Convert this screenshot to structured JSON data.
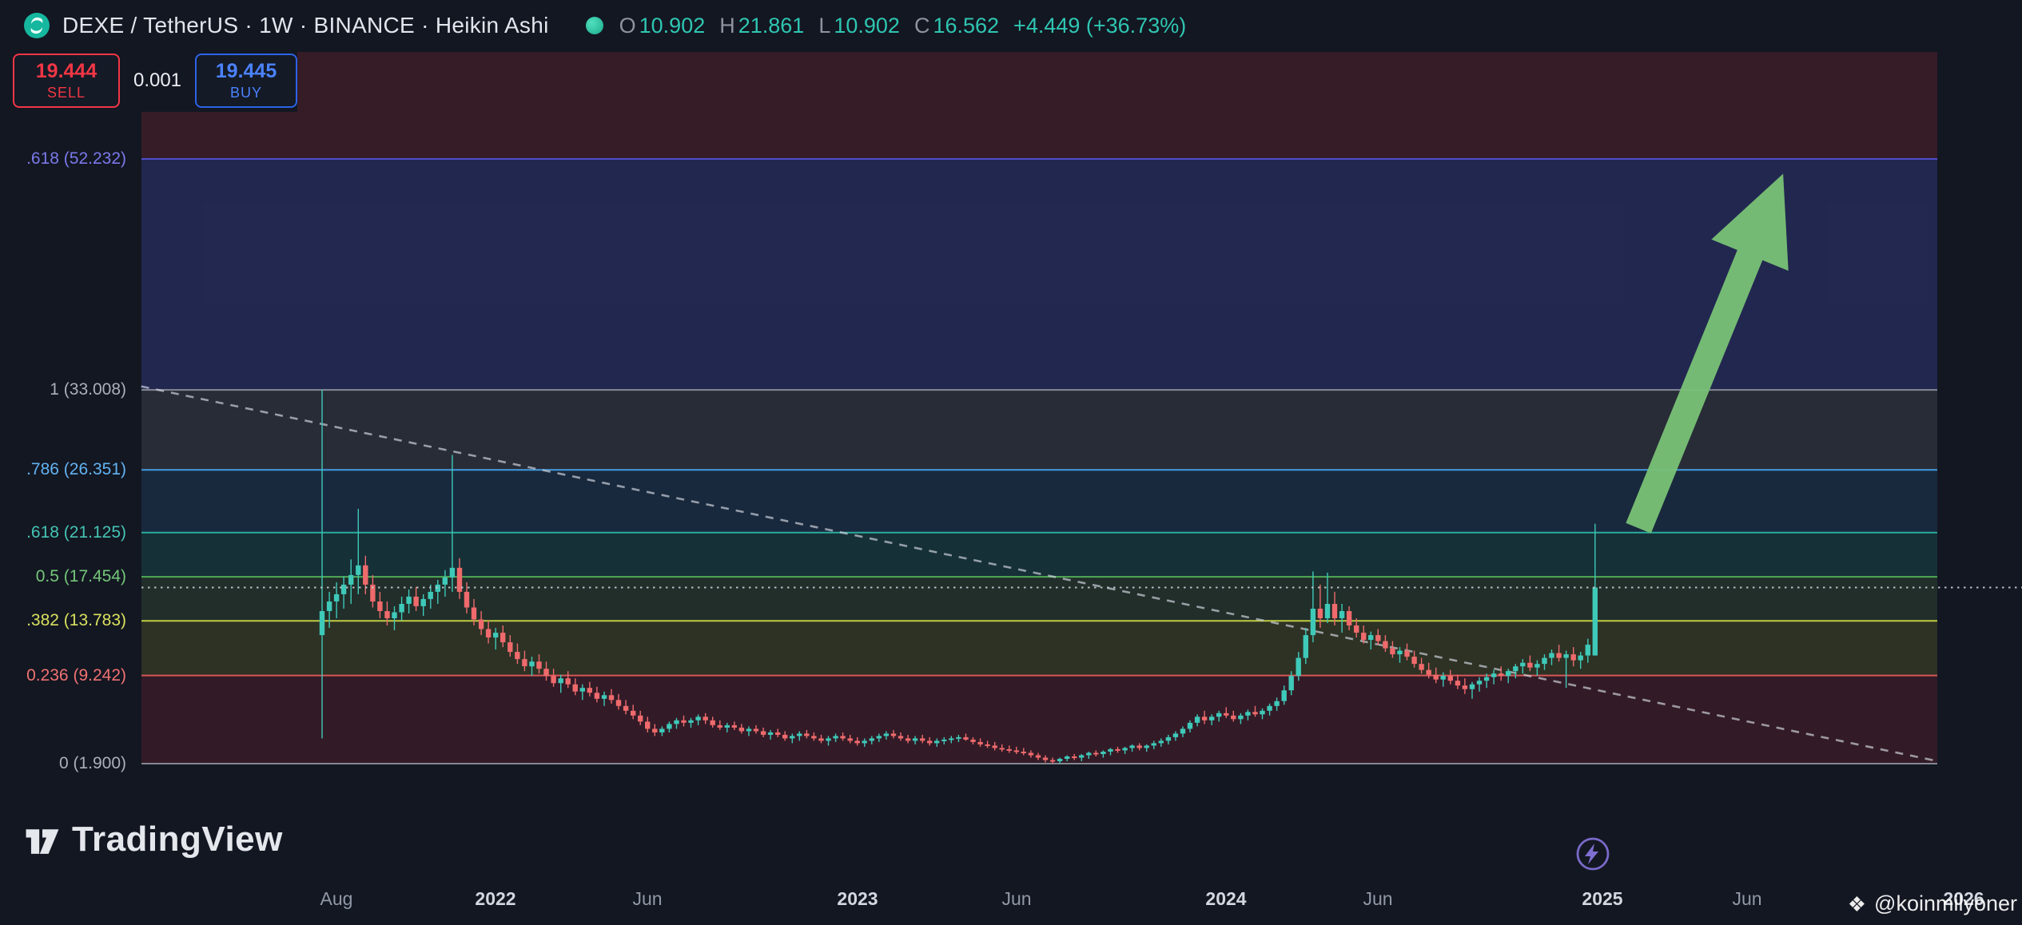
{
  "header": {
    "symbol_title": "DEXE / TetherUS · 1W · BINANCE · Heikin Ashi",
    "ohlc": {
      "o_label": "O",
      "o": "10.902",
      "h_label": "H",
      "h": "21.861",
      "l_label": "L",
      "l": "10.902",
      "c_label": "C",
      "c": "16.562",
      "change": "+4.449 (+36.73%)"
    }
  },
  "trade_panel": {
    "sell_price": "19.444",
    "sell_label": "SELL",
    "spread": "0.001",
    "buy_price": "19.445",
    "buy_label": "BUY"
  },
  "footer": {
    "logo_text": "TradingView"
  },
  "watermark": {
    "handle": "@koinmilyoner"
  },
  "chart_data": {
    "type": "candlestick",
    "subtype": "heikin-ashi",
    "symbol": "DEXE / TetherUS",
    "exchange": "BINANCE",
    "interval": "1W",
    "current_price": 16.562,
    "current_price_line_color": "#c9cdd6",
    "up_color": "#3fc9b8",
    "down_color": "#ef6a6c",
    "fib_levels": [
      {
        "label": ".618 (52.232)",
        "value": 52.232,
        "line": "#5250d6",
        "text": "#7b79ea"
      },
      {
        "label": "1 (33.008)",
        "value": 33.008,
        "line": "#8a8e99",
        "text": "#aab0bb"
      },
      {
        "label": ".786 (26.351)",
        "value": 26.351,
        "line": "#46a1e8",
        "text": "#63b3f2"
      },
      {
        "label": ".618 (21.125)",
        "value": 21.125,
        "line": "#2bb3a3",
        "text": "#45c4b4"
      },
      {
        "label": "0.5 (17.454)",
        "value": 17.454,
        "line": "#53b258",
        "text": "#74c779"
      },
      {
        "label": ".382 (13.783)",
        "value": 13.783,
        "line": "#c9d445",
        "text": "#d9e05e"
      },
      {
        "label": "0.236 (9.242)",
        "value": 9.242,
        "line": "#e05a5a",
        "text": "#ef7272"
      },
      {
        "label": "0 (1.900)",
        "value": 1.9,
        "line": "#8a8e99",
        "text": "#aab0bb"
      }
    ],
    "bands": [
      {
        "from": 52.232,
        "to": 70,
        "color": "rgba(242,54,69,0.16)"
      },
      {
        "from": 33.008,
        "to": 52.232,
        "color": "rgba(83,94,228,0.24)"
      },
      {
        "from": 26.351,
        "to": 33.008,
        "color": "rgba(164,170,184,0.15)"
      },
      {
        "from": 21.125,
        "to": 26.351,
        "color": "rgba(66,165,245,0.13)"
      },
      {
        "from": 17.454,
        "to": 21.125,
        "color": "rgba(38,166,154,0.18)"
      },
      {
        "from": 13.783,
        "to": 17.454,
        "color": "rgba(118,190,90,0.14)"
      },
      {
        "from": 9.242,
        "to": 13.783,
        "color": "rgba(205,220,57,0.14)"
      },
      {
        "from": 1.9,
        "to": 9.242,
        "color": "rgba(242,54,69,0.14)"
      }
    ],
    "x_axis_labels": [
      {
        "text": "Aug",
        "week": 2,
        "year": false
      },
      {
        "text": "2022",
        "week": 24,
        "year": true
      },
      {
        "text": "Jun",
        "week": 45,
        "year": false
      },
      {
        "text": "2023",
        "week": 74,
        "year": true
      },
      {
        "text": "Jun",
        "week": 96,
        "year": false
      },
      {
        "text": "2024",
        "week": 125,
        "year": true
      },
      {
        "text": "Jun",
        "week": 146,
        "year": false
      },
      {
        "text": "2025",
        "week": 177,
        "year": true
      },
      {
        "text": "Jun",
        "week": 197,
        "year": false
      },
      {
        "text": "2026",
        "week": 227,
        "year": true
      }
    ],
    "trendline": {
      "color": "rgba(203,207,216,0.7)",
      "start": {
        "week": -25,
        "price": 33.3
      },
      "end": {
        "week": 223,
        "price": 2.15
      }
    },
    "arrow": {
      "color": "#79c276",
      "tail": {
        "week": 182,
        "price": 21.5
      },
      "tip": {
        "week": 202,
        "price": 51.0
      }
    },
    "candles": [
      [
        12.6,
        33.0,
        4.0,
        14.6
      ],
      [
        14.6,
        16.2,
        13.2,
        15.4
      ],
      [
        15.4,
        17.0,
        14.0,
        16.0
      ],
      [
        16.0,
        17.5,
        14.8,
        16.8
      ],
      [
        16.8,
        18.9,
        15.2,
        17.6
      ],
      [
        17.6,
        23.1,
        16.0,
        18.4
      ],
      [
        18.4,
        19.2,
        16.0,
        16.8
      ],
      [
        16.8,
        17.6,
        14.9,
        15.4
      ],
      [
        15.4,
        16.2,
        14.0,
        14.6
      ],
      [
        14.6,
        15.4,
        13.4,
        14.0
      ],
      [
        14.0,
        15.0,
        13.0,
        14.5
      ],
      [
        14.5,
        15.8,
        13.8,
        15.2
      ],
      [
        15.2,
        16.4,
        14.4,
        15.8
      ],
      [
        15.8,
        16.6,
        14.6,
        15.0
      ],
      [
        15.0,
        16.0,
        14.2,
        15.6
      ],
      [
        15.6,
        16.8,
        14.8,
        16.2
      ],
      [
        16.2,
        17.2,
        15.2,
        16.8
      ],
      [
        16.8,
        18.0,
        15.8,
        17.4
      ],
      [
        17.4,
        27.6,
        16.2,
        18.2
      ],
      [
        18.2,
        19.0,
        15.6,
        16.2
      ],
      [
        16.2,
        17.0,
        14.4,
        14.9
      ],
      [
        14.9,
        15.6,
        13.4,
        13.9
      ],
      [
        13.9,
        14.6,
        12.6,
        13.1
      ],
      [
        13.1,
        13.8,
        11.9,
        12.4
      ],
      [
        12.4,
        13.2,
        11.4,
        12.8
      ],
      [
        12.8,
        13.4,
        11.6,
        12.0
      ],
      [
        12.0,
        12.6,
        10.8,
        11.2
      ],
      [
        11.2,
        11.9,
        10.2,
        10.6
      ],
      [
        10.6,
        11.3,
        9.6,
        10.0
      ],
      [
        10.0,
        10.8,
        9.2,
        10.4
      ],
      [
        10.4,
        11.0,
        9.4,
        9.8
      ],
      [
        9.8,
        10.4,
        8.8,
        9.2
      ],
      [
        9.2,
        9.8,
        8.3,
        8.6
      ],
      [
        8.6,
        9.3,
        7.8,
        9.0
      ],
      [
        9.0,
        9.6,
        8.2,
        8.5
      ],
      [
        8.5,
        9.0,
        7.6,
        7.9
      ],
      [
        7.9,
        8.5,
        7.2,
        8.2
      ],
      [
        8.2,
        8.7,
        7.5,
        7.8
      ],
      [
        7.8,
        8.3,
        7.0,
        7.3
      ],
      [
        7.3,
        7.9,
        6.7,
        7.6
      ],
      [
        7.6,
        8.1,
        6.9,
        7.2
      ],
      [
        7.2,
        7.7,
        6.4,
        6.7
      ],
      [
        6.7,
        7.2,
        6.0,
        6.3
      ],
      [
        6.3,
        6.8,
        5.6,
        5.9
      ],
      [
        5.9,
        6.3,
        5.1,
        5.4
      ],
      [
        5.4,
        5.8,
        4.5,
        4.8
      ],
      [
        4.8,
        5.2,
        4.2,
        4.5
      ],
      [
        4.5,
        5.0,
        4.2,
        4.8
      ],
      [
        4.8,
        5.4,
        4.5,
        5.2
      ],
      [
        5.2,
        5.7,
        4.8,
        5.5
      ],
      [
        5.5,
        5.9,
        5.0,
        5.3
      ],
      [
        5.3,
        5.7,
        4.9,
        5.5
      ],
      [
        5.5,
        6.0,
        5.1,
        5.8
      ],
      [
        5.8,
        6.1,
        5.2,
        5.5
      ],
      [
        5.5,
        5.8,
        4.9,
        5.1
      ],
      [
        5.1,
        5.5,
        4.7,
        4.9
      ],
      [
        4.9,
        5.3,
        4.5,
        5.1
      ],
      [
        5.1,
        5.4,
        4.7,
        4.9
      ],
      [
        4.9,
        5.2,
        4.4,
        4.6
      ],
      [
        4.6,
        5.0,
        4.2,
        4.8
      ],
      [
        4.8,
        5.1,
        4.4,
        4.6
      ],
      [
        4.6,
        4.9,
        4.1,
        4.3
      ],
      [
        4.3,
        4.7,
        3.9,
        4.5
      ],
      [
        4.5,
        4.8,
        4.1,
        4.3
      ],
      [
        4.3,
        4.6,
        3.8,
        4.0
      ],
      [
        4.0,
        4.4,
        3.6,
        4.2
      ],
      [
        4.2,
        4.6,
        3.8,
        4.4
      ],
      [
        4.4,
        4.7,
        4.0,
        4.2
      ],
      [
        4.2,
        4.5,
        3.8,
        4.0
      ],
      [
        4.0,
        4.3,
        3.6,
        3.8
      ],
      [
        3.8,
        4.2,
        3.4,
        4.0
      ],
      [
        4.0,
        4.4,
        3.7,
        4.2
      ],
      [
        4.2,
        4.5,
        3.8,
        4.0
      ],
      [
        4.0,
        4.3,
        3.6,
        3.8
      ],
      [
        3.8,
        4.1,
        3.4,
        3.6
      ],
      [
        3.6,
        4.0,
        3.3,
        3.8
      ],
      [
        3.8,
        4.2,
        3.5,
        4.0
      ],
      [
        4.0,
        4.4,
        3.7,
        4.2
      ],
      [
        4.2,
        4.6,
        3.9,
        4.4
      ],
      [
        4.4,
        4.7,
        4.0,
        4.2
      ],
      [
        4.2,
        4.5,
        3.8,
        4.0
      ],
      [
        4.0,
        4.3,
        3.6,
        3.8
      ],
      [
        3.8,
        4.2,
        3.5,
        4.0
      ],
      [
        4.0,
        4.3,
        3.6,
        3.8
      ],
      [
        3.8,
        4.1,
        3.4,
        3.6
      ],
      [
        3.6,
        4.0,
        3.3,
        3.8
      ],
      [
        3.8,
        4.1,
        3.5,
        3.9
      ],
      [
        3.9,
        4.2,
        3.6,
        4.0
      ],
      [
        4.0,
        4.3,
        3.7,
        4.1
      ],
      [
        4.1,
        4.4,
        3.8,
        3.9
      ],
      [
        3.9,
        4.1,
        3.5,
        3.7
      ],
      [
        3.7,
        4.0,
        3.3,
        3.5
      ],
      [
        3.5,
        3.8,
        3.2,
        3.4
      ],
      [
        3.4,
        3.7,
        3.0,
        3.2
      ],
      [
        3.2,
        3.5,
        2.9,
        3.1
      ],
      [
        3.1,
        3.4,
        2.8,
        3.0
      ],
      [
        3.0,
        3.3,
        2.7,
        2.9
      ],
      [
        2.9,
        3.2,
        2.6,
        2.8
      ],
      [
        2.8,
        3.0,
        2.4,
        2.6
      ],
      [
        2.6,
        2.8,
        2.2,
        2.4
      ],
      [
        2.4,
        2.6,
        2.0,
        2.2
      ],
      [
        2.2,
        2.4,
        1.9,
        2.1
      ],
      [
        2.1,
        2.4,
        1.9,
        2.3
      ],
      [
        2.3,
        2.6,
        2.1,
        2.5
      ],
      [
        2.5,
        2.7,
        2.2,
        2.4
      ],
      [
        2.4,
        2.7,
        2.1,
        2.6
      ],
      [
        2.6,
        2.9,
        2.3,
        2.8
      ],
      [
        2.8,
        3.0,
        2.5,
        2.7
      ],
      [
        2.7,
        3.0,
        2.4,
        2.9
      ],
      [
        2.9,
        3.2,
        2.6,
        3.1
      ],
      [
        3.1,
        3.3,
        2.8,
        3.0
      ],
      [
        3.0,
        3.3,
        2.7,
        3.2
      ],
      [
        3.2,
        3.5,
        2.9,
        3.4
      ],
      [
        3.4,
        3.6,
        3.0,
        3.2
      ],
      [
        3.2,
        3.5,
        2.9,
        3.4
      ],
      [
        3.4,
        3.8,
        3.1,
        3.6
      ],
      [
        3.6,
        4.0,
        3.3,
        3.8
      ],
      [
        3.8,
        4.3,
        3.5,
        4.1
      ],
      [
        4.1,
        4.6,
        3.8,
        4.4
      ],
      [
        4.4,
        5.0,
        4.1,
        4.8
      ],
      [
        4.8,
        5.5,
        4.5,
        5.3
      ],
      [
        5.3,
        6.0,
        5.0,
        5.8
      ],
      [
        5.8,
        6.3,
        5.2,
        5.5
      ],
      [
        5.5,
        6.0,
        5.1,
        5.8
      ],
      [
        5.8,
        6.3,
        5.4,
        6.1
      ],
      [
        6.1,
        6.6,
        5.7,
        5.9
      ],
      [
        5.9,
        6.3,
        5.4,
        5.6
      ],
      [
        5.6,
        6.1,
        5.2,
        5.9
      ],
      [
        5.9,
        6.4,
        5.5,
        6.2
      ],
      [
        6.2,
        6.7,
        5.8,
        6.0
      ],
      [
        6.0,
        6.5,
        5.6,
        6.3
      ],
      [
        6.3,
        6.9,
        5.9,
        6.7
      ],
      [
        6.7,
        7.4,
        6.3,
        7.1
      ],
      [
        7.1,
        8.4,
        6.8,
        8.0
      ],
      [
        8.0,
        9.6,
        7.6,
        9.2
      ],
      [
        9.2,
        11.2,
        8.8,
        10.7
      ],
      [
        10.7,
        13.2,
        10.2,
        12.6
      ],
      [
        12.6,
        17.9,
        12.0,
        14.8
      ],
      [
        14.8,
        16.8,
        13.2,
        14.0
      ],
      [
        14.0,
        17.8,
        13.6,
        15.2
      ],
      [
        15.2,
        16.2,
        13.4,
        14.0
      ],
      [
        14.0,
        15.2,
        12.8,
        14.6
      ],
      [
        14.6,
        15.0,
        13.0,
        13.4
      ],
      [
        13.4,
        14.0,
        12.4,
        12.8
      ],
      [
        12.8,
        13.4,
        11.9,
        12.2
      ],
      [
        12.2,
        12.9,
        11.4,
        12.6
      ],
      [
        12.6,
        13.1,
        11.8,
        12.1
      ],
      [
        12.1,
        12.6,
        11.2,
        11.5
      ],
      [
        11.5,
        12.1,
        10.7,
        11.0
      ],
      [
        11.0,
        11.6,
        10.3,
        11.3
      ],
      [
        11.3,
        11.9,
        10.5,
        10.8
      ],
      [
        10.8,
        11.3,
        9.9,
        10.2
      ],
      [
        10.2,
        10.7,
        9.4,
        9.7
      ],
      [
        9.7,
        10.3,
        9.0,
        9.3
      ],
      [
        9.3,
        9.9,
        8.6,
        8.9
      ],
      [
        8.9,
        9.5,
        8.3,
        9.2
      ],
      [
        9.2,
        9.7,
        8.5,
        8.8
      ],
      [
        8.8,
        9.3,
        8.1,
        8.4
      ],
      [
        8.4,
        9.0,
        7.7,
        8.1
      ],
      [
        8.1,
        8.7,
        7.3,
        8.5
      ],
      [
        8.5,
        9.1,
        7.9,
        8.8
      ],
      [
        8.8,
        9.4,
        8.2,
        9.1
      ],
      [
        9.1,
        9.7,
        8.5,
        9.4
      ],
      [
        9.4,
        10.0,
        8.8,
        9.2
      ],
      [
        9.2,
        9.8,
        8.6,
        9.6
      ],
      [
        9.6,
        10.2,
        9.0,
        10.0
      ],
      [
        10.0,
        10.6,
        9.4,
        10.3
      ],
      [
        10.3,
        10.9,
        9.6,
        9.9
      ],
      [
        9.9,
        10.5,
        9.2,
        10.2
      ],
      [
        10.2,
        11.0,
        9.7,
        10.7
      ],
      [
        10.7,
        11.4,
        10.1,
        11.1
      ],
      [
        11.1,
        11.8,
        10.4,
        10.7
      ],
      [
        10.7,
        11.3,
        8.2,
        11.0
      ],
      [
        11.0,
        11.6,
        10.0,
        10.5
      ],
      [
        10.5,
        11.2,
        9.8,
        10.9
      ],
      [
        10.9,
        12.3,
        10.3,
        11.8
      ],
      [
        10.902,
        21.861,
        10.902,
        16.562
      ]
    ]
  }
}
